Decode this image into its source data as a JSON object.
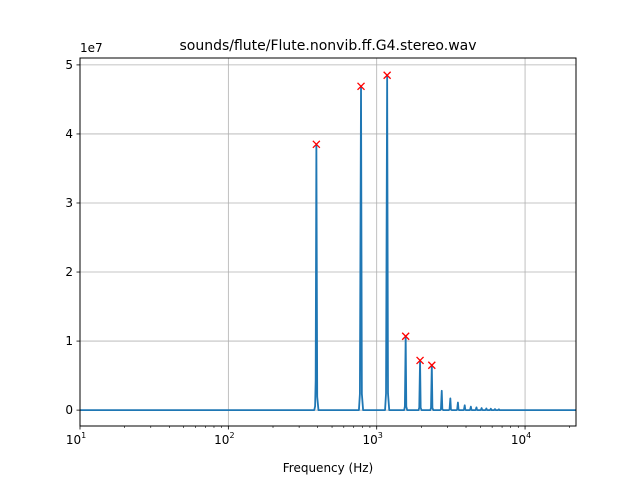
{
  "chart_data": {
    "type": "line",
    "title": "sounds/flute/Flute.nonvib.ff.G4.stereo.wav",
    "xlabel": "Frequency (Hz)",
    "ylabel": "",
    "x_scale": "log",
    "xlim": [
      10,
      22050
    ],
    "ylim": [
      -2300000,
      51000000
    ],
    "y_offset_label": "1e7",
    "grid": true,
    "x_ticks": [
      {
        "value": 10,
        "base": "10",
        "exp": "1"
      },
      {
        "value": 100,
        "base": "10",
        "exp": "2"
      },
      {
        "value": 1000,
        "base": "10",
        "exp": "3"
      },
      {
        "value": 10000,
        "base": "10",
        "exp": "4"
      }
    ],
    "y_ticks": [
      {
        "value": 0,
        "label": "0"
      },
      {
        "value": 10000000,
        "label": "1"
      },
      {
        "value": 20000000,
        "label": "2"
      },
      {
        "value": 30000000,
        "label": "3"
      },
      {
        "value": 40000000,
        "label": "4"
      },
      {
        "value": 50000000,
        "label": "5"
      }
    ],
    "series": [
      {
        "color": "#1f77b4",
        "peaks": [
          {
            "x": 392,
            "y": 38500000
          },
          {
            "x": 784,
            "y": 46900000
          },
          {
            "x": 1176,
            "y": 48500000
          },
          {
            "x": 1568,
            "y": 10700000
          },
          {
            "x": 1960,
            "y": 7200000
          },
          {
            "x": 2352,
            "y": 6500000
          },
          {
            "x": 2744,
            "y": 2800000
          },
          {
            "x": 3136,
            "y": 1700000
          },
          {
            "x": 3528,
            "y": 1100000
          },
          {
            "x": 3920,
            "y": 700000
          },
          {
            "x": 4312,
            "y": 500000
          },
          {
            "x": 4704,
            "y": 400000
          },
          {
            "x": 5096,
            "y": 300000
          },
          {
            "x": 5488,
            "y": 250000
          },
          {
            "x": 5880,
            "y": 200000
          },
          {
            "x": 6272,
            "y": 150000
          },
          {
            "x": 6664,
            "y": 120000
          }
        ]
      }
    ],
    "markers": {
      "color": "#ff0000",
      "symbol": "x",
      "points": [
        {
          "x": 392,
          "y": 38500000
        },
        {
          "x": 784,
          "y": 46900000
        },
        {
          "x": 1176,
          "y": 48500000
        },
        {
          "x": 1568,
          "y": 10700000
        },
        {
          "x": 1960,
          "y": 7200000
        },
        {
          "x": 2352,
          "y": 6500000
        }
      ]
    }
  }
}
